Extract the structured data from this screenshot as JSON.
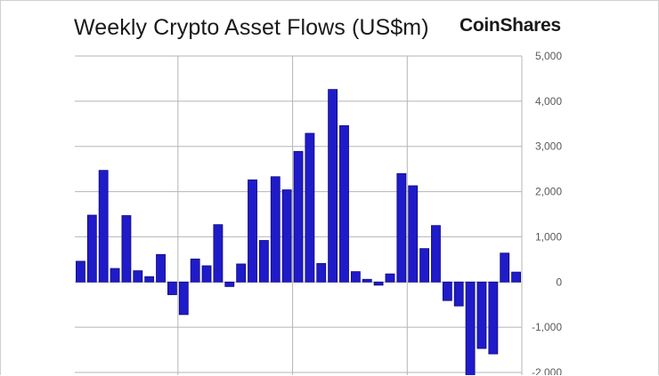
{
  "header": {
    "title": "Weekly Crypto Asset Flows (US$m)",
    "logo_text": "CoinShares"
  },
  "colors": {
    "bar": "#1f1bc9",
    "bar_edge": "#0f0c7a",
    "grid": "#b5b5b5",
    "tick_text": "#5a5a5a"
  },
  "chart_data": {
    "type": "bar",
    "title": "Weekly Crypto Asset Flows (US$m)",
    "xlabel": "",
    "ylabel": "",
    "y_axis_side": "right",
    "grid": true,
    "ylim": [
      -2000,
      5000
    ],
    "yticks": [
      5000,
      4000,
      3000,
      2000,
      1000,
      0,
      -1000,
      -2000
    ],
    "ytick_labels": [
      "5,000",
      "4,000",
      "3,000",
      "2,000",
      "1,000",
      "0",
      "-1,000",
      "-2,000"
    ],
    "values": [
      460,
      1480,
      2470,
      300,
      1470,
      250,
      120,
      610,
      -280,
      -720,
      510,
      360,
      1270,
      -100,
      400,
      2260,
      920,
      2330,
      2040,
      2890,
      3290,
      410,
      4260,
      3460,
      230,
      60,
      -70,
      180,
      2400,
      2130,
      740,
      1250,
      -410,
      -530,
      -2200,
      -1470,
      -1590,
      640,
      220
    ]
  }
}
